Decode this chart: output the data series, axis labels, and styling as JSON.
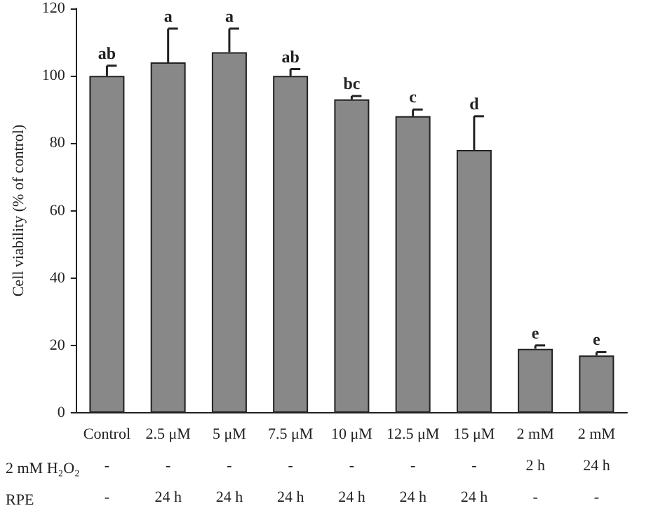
{
  "chart_data": {
    "type": "bar",
    "ylabel": "Cell viability (% of control)",
    "categories": [
      "Control\n-\n-",
      "2.5 μM\n-\n24 h",
      "5 μM\n-\n24 h",
      "7.5 μM\n-\n24 h",
      "10 μM\n-\n24 h",
      "12.5 μM\n-\n24 h",
      "15 μM\n-\n24 h",
      "2 mM\n2 h\n-",
      "2 mM\n24 h\n-"
    ],
    "values": [
      100,
      104,
      107,
      100,
      93,
      88,
      78,
      19,
      17
    ],
    "errors": [
      [
        100,
        103
      ],
      [
        104,
        114
      ],
      [
        107,
        114
      ],
      [
        100,
        102
      ],
      [
        93,
        94
      ],
      [
        88,
        90
      ],
      [
        78,
        88
      ],
      [
        19,
        20
      ],
      [
        17,
        18
      ]
    ],
    "value_labels": [
      "ab",
      "a",
      "a",
      "ab",
      "bc",
      "c",
      "d",
      "e",
      "e"
    ],
    "color": "#888888",
    "ylim": [
      0,
      120
    ],
    "yticks": [
      0,
      20,
      40,
      60,
      80,
      100,
      120
    ],
    "annotations": [
      "2 mM H₂O₂",
      "RPE"
    ]
  }
}
